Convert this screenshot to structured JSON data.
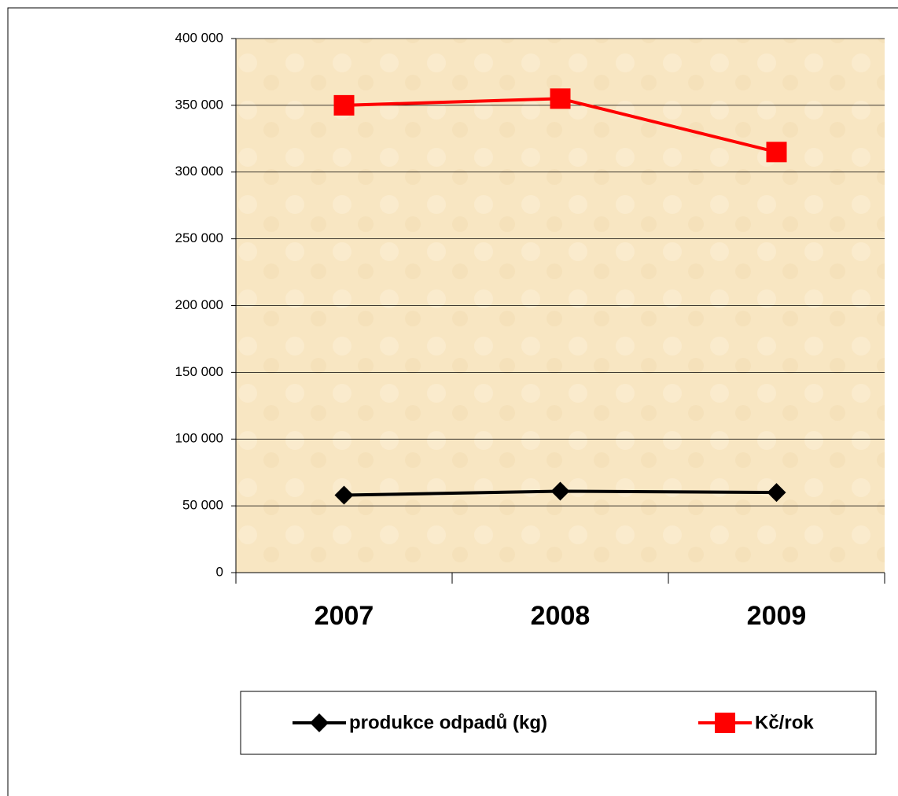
{
  "chart_data": {
    "type": "line",
    "categories": [
      "2007",
      "2008",
      "2009"
    ],
    "series": [
      {
        "name": "produkce odpadů (kg)",
        "color": "#000000",
        "marker": "diamond",
        "values": [
          58000,
          61000,
          60000
        ]
      },
      {
        "name": "Kč/rok",
        "color": "#ff0000",
        "marker": "square",
        "values": [
          350000,
          355000,
          315000
        ]
      }
    ],
    "ylim": [
      0,
      400000
    ],
    "yticks": [
      0,
      {
        "value": 50000,
        "label": "50 000"
      },
      {
        "value": 100000,
        "label": "100 000"
      },
      {
        "value": 150000,
        "label": "150 000"
      },
      {
        "value": 200000,
        "label": "200 000"
      },
      {
        "value": 250000,
        "label": "250 000"
      },
      {
        "value": 300000,
        "label": "300 000"
      },
      {
        "value": 350000,
        "label": "350 000"
      },
      {
        "value": 400000,
        "label": "400 000"
      }
    ],
    "grid": true
  }
}
